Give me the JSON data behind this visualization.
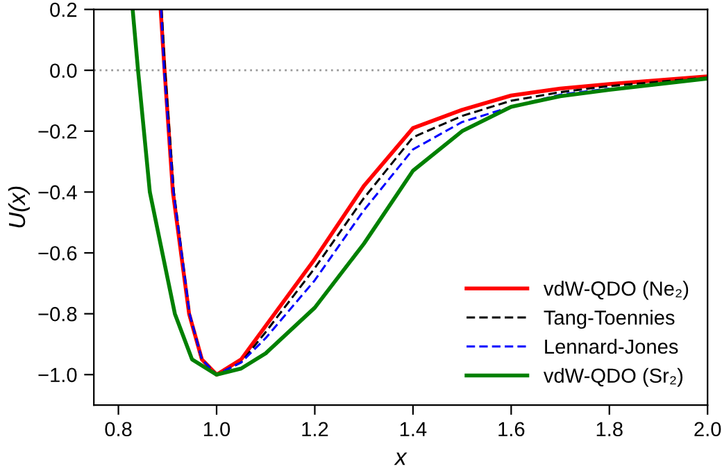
{
  "chart_data": {
    "type": "line",
    "xlabel": "x",
    "ylabel": "U(x)",
    "xlim": [
      0.75,
      2.0
    ],
    "ylim": [
      -1.1,
      0.2
    ],
    "xticks": [
      {
        "value": 0.8,
        "label": "0.8"
      },
      {
        "value": 1.0,
        "label": "1.0"
      },
      {
        "value": 1.2,
        "label": "1.2"
      },
      {
        "value": 1.4,
        "label": "1.4"
      },
      {
        "value": 1.6,
        "label": "1.6"
      },
      {
        "value": 1.8,
        "label": "1.8"
      },
      {
        "value": 2.0,
        "label": "2.0"
      }
    ],
    "yticks": [
      {
        "value": -1.0,
        "label": "−1.0"
      },
      {
        "value": -0.8,
        "label": "−0.8"
      },
      {
        "value": -0.6,
        "label": "−0.6"
      },
      {
        "value": -0.4,
        "label": "−0.4"
      },
      {
        "value": -0.2,
        "label": "−0.2"
      },
      {
        "value": 0.0,
        "label": "0.0"
      },
      {
        "value": 0.2,
        "label": "0.2"
      }
    ],
    "grid": false,
    "legend": "bottom right",
    "marker": "none",
    "ref_lines": [
      {
        "axis": "y",
        "value": 0,
        "color": "#999999",
        "line_style": "dotted"
      }
    ],
    "series": [
      {
        "name": "vdW-QDO (Ne₂)",
        "color": "#ff0000",
        "line_style": "solid",
        "x": [
          0.886,
          0.894,
          0.911,
          0.944,
          0.97,
          1.0,
          1.05,
          1.1,
          1.2,
          1.3,
          1.4,
          1.5,
          1.6,
          1.7,
          1.8,
          2.0
        ],
        "values": [
          0.2,
          0.0,
          -0.4,
          -0.8,
          -0.95,
          -1.0,
          -0.95,
          -0.84,
          -0.62,
          -0.38,
          -0.19,
          -0.13,
          -0.083,
          -0.06,
          -0.045,
          -0.02
        ]
      },
      {
        "name": "Tang-Toennies",
        "color": "#000000",
        "line_style": "dashed",
        "x": [
          0.888,
          0.895,
          0.913,
          0.945,
          0.97,
          1.0,
          1.05,
          1.1,
          1.2,
          1.3,
          1.4,
          1.5,
          1.6,
          1.7,
          1.8,
          2.0
        ],
        "values": [
          0.2,
          0.0,
          -0.4,
          -0.8,
          -0.95,
          -1.0,
          -0.96,
          -0.86,
          -0.65,
          -0.42,
          -0.22,
          -0.15,
          -0.1,
          -0.072,
          -0.052,
          -0.024
        ]
      },
      {
        "name": "Lennard-Jones",
        "color": "#0000ff",
        "line_style": "dashed",
        "x": [
          0.887,
          0.893,
          0.912,
          0.945,
          0.97,
          1.0,
          1.05,
          1.1,
          1.2,
          1.3,
          1.4,
          1.5,
          1.6,
          1.7,
          1.8
        ],
        "values": [
          0.2,
          0.0,
          -0.4,
          -0.8,
          -0.95,
          -1.0,
          -0.96,
          -0.88,
          -0.69,
          -0.46,
          -0.26,
          -0.17,
          -0.12,
          -0.08,
          -0.06
        ]
      },
      {
        "name": "vdW-QDO (Sr₂)",
        "color": "#008000",
        "line_style": "solid",
        "x": [
          0.829,
          0.84,
          0.864,
          0.915,
          0.95,
          1.0,
          1.05,
          1.1,
          1.2,
          1.3,
          1.4,
          1.5,
          1.6,
          1.7,
          1.8,
          2.0
        ],
        "values": [
          0.2,
          0.0,
          -0.4,
          -0.8,
          -0.95,
          -1.0,
          -0.98,
          -0.93,
          -0.78,
          -0.57,
          -0.33,
          -0.2,
          -0.12,
          -0.085,
          -0.064,
          -0.027
        ]
      }
    ]
  }
}
